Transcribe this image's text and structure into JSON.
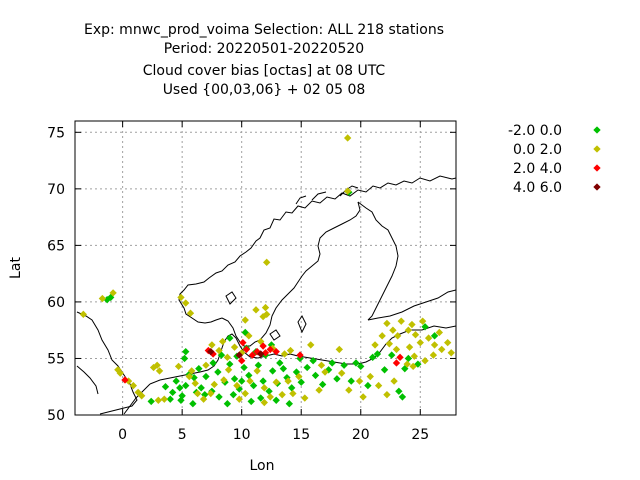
{
  "chart_data": {
    "type": "scatter",
    "title_lines": [
      "Exp: mnwc_prod_voima   Selection: ALL    218 stations",
      "Period: 20220501-20220520",
      "Cloud cover bias [octas] at  08 UTC",
      "Used {00,03,06} + 02 05 08"
    ],
    "xlabel": "Lon",
    "ylabel": "Lat",
    "xlim": [
      -4,
      28
    ],
    "ylim": [
      50,
      76
    ],
    "xticks": [
      0,
      5,
      10,
      15,
      20,
      25
    ],
    "yticks": [
      50,
      55,
      60,
      65,
      70,
      75
    ],
    "grid": true,
    "legend_placement": "top-right outside",
    "series": [
      {
        "name": "-2.0 0.0",
        "color": "#00c000",
        "points": [
          [
            -1.3,
            60.2
          ],
          [
            -1.0,
            60.4
          ],
          [
            19.0,
            69.7
          ],
          [
            2.4,
            51.2
          ],
          [
            4.2,
            52.0
          ],
          [
            4.8,
            52.4
          ],
          [
            5.3,
            52.6
          ],
          [
            5.0,
            51.7
          ],
          [
            4.5,
            53.0
          ],
          [
            5.6,
            53.6
          ],
          [
            5.2,
            55.0
          ],
          [
            6.0,
            53.3
          ],
          [
            6.6,
            52.4
          ],
          [
            7.0,
            53.4
          ],
          [
            7.5,
            52.1
          ],
          [
            8.0,
            53.8
          ],
          [
            8.6,
            52.9
          ],
          [
            9.0,
            54.5
          ],
          [
            9.4,
            53.2
          ],
          [
            9.8,
            52.3
          ],
          [
            10.2,
            54.2
          ],
          [
            10.6,
            53.5
          ],
          [
            11.0,
            52.6
          ],
          [
            11.4,
            54.4
          ],
          [
            11.8,
            53.0
          ],
          [
            12.3,
            52.1
          ],
          [
            12.6,
            53.9
          ],
          [
            13.0,
            52.8
          ],
          [
            13.5,
            54.1
          ],
          [
            13.8,
            53.3
          ],
          [
            14.2,
            52.4
          ],
          [
            14.6,
            53.8
          ],
          [
            15.0,
            52.9
          ],
          [
            15.5,
            54.2
          ],
          [
            16.2,
            53.5
          ],
          [
            16.8,
            52.7
          ],
          [
            17.3,
            54.0
          ],
          [
            18.0,
            53.2
          ],
          [
            18.6,
            54.4
          ],
          [
            19.2,
            53.0
          ],
          [
            20.0,
            54.3
          ],
          [
            20.6,
            52.6
          ],
          [
            21.0,
            55.1
          ],
          [
            21.4,
            55.4
          ],
          [
            22.0,
            54.0
          ],
          [
            23.2,
            52.1
          ],
          [
            23.5,
            51.6
          ],
          [
            24.0,
            55.0
          ],
          [
            24.8,
            54.5
          ],
          [
            25.4,
            57.8
          ],
          [
            26.2,
            57.0
          ],
          [
            22.6,
            55.3
          ],
          [
            23.7,
            54.1
          ],
          [
            8.1,
            51.6
          ],
          [
            8.8,
            51.0
          ],
          [
            9.3,
            51.8
          ],
          [
            10.8,
            51.2
          ],
          [
            11.6,
            51.5
          ],
          [
            12.9,
            51.3
          ],
          [
            14.0,
            51.0
          ],
          [
            10.0,
            53.0
          ],
          [
            7.6,
            54.6
          ],
          [
            6.4,
            54.1
          ],
          [
            3.6,
            52.5
          ],
          [
            4.0,
            51.4
          ],
          [
            5.9,
            51.0
          ],
          [
            6.9,
            51.8
          ],
          [
            9.6,
            55.2
          ],
          [
            11.2,
            55.6
          ],
          [
            12.0,
            55.3
          ],
          [
            14.9,
            55.0
          ],
          [
            13.2,
            54.6
          ],
          [
            16.0,
            54.8
          ],
          [
            17.6,
            54.6
          ],
          [
            19.6,
            54.6
          ],
          [
            8.3,
            55.3
          ],
          [
            10.4,
            55.9
          ],
          [
            12.5,
            56.2
          ],
          [
            9.0,
            56.8
          ],
          [
            10.3,
            57.3
          ],
          [
            5.3,
            55.6
          ],
          [
            4.9,
            51.3
          ],
          [
            6.2,
            52.0
          ]
        ]
      },
      {
        "name": "0.0 2.0",
        "color": "#c0c000",
        "points": [
          [
            -3.3,
            58.9
          ],
          [
            -1.7,
            60.3
          ],
          [
            -0.8,
            60.8
          ],
          [
            4.9,
            60.4
          ],
          [
            5.3,
            59.9
          ],
          [
            5.7,
            59.0
          ],
          [
            12.1,
            63.5
          ],
          [
            18.9,
            74.5
          ],
          [
            18.9,
            69.8
          ],
          [
            -0.4,
            54.0
          ],
          [
            -0.2,
            53.7
          ],
          [
            0.5,
            53.0
          ],
          [
            0.9,
            52.6
          ],
          [
            1.3,
            52.0
          ],
          [
            1.6,
            51.7
          ],
          [
            3.0,
            51.3
          ],
          [
            3.5,
            51.4
          ],
          [
            2.9,
            54.4
          ],
          [
            3.1,
            53.9
          ],
          [
            4.7,
            54.3
          ],
          [
            5.8,
            53.9
          ],
          [
            6.1,
            52.8
          ],
          [
            6.8,
            51.4
          ],
          [
            7.4,
            51.9
          ],
          [
            7.7,
            52.7
          ],
          [
            8.5,
            53.1
          ],
          [
            8.9,
            54.0
          ],
          [
            9.6,
            52.6
          ],
          [
            10.3,
            51.9
          ],
          [
            10.7,
            53.0
          ],
          [
            11.3,
            53.9
          ],
          [
            11.9,
            52.4
          ],
          [
            12.4,
            51.6
          ],
          [
            12.9,
            52.9
          ],
          [
            13.4,
            51.8
          ],
          [
            13.9,
            53.0
          ],
          [
            14.3,
            51.9
          ],
          [
            14.8,
            53.4
          ],
          [
            15.3,
            51.5
          ],
          [
            16.5,
            52.2
          ],
          [
            17.0,
            53.8
          ],
          [
            18.4,
            53.7
          ],
          [
            19.0,
            52.2
          ],
          [
            19.9,
            53.0
          ],
          [
            20.2,
            51.6
          ],
          [
            20.8,
            53.4
          ],
          [
            21.5,
            52.6
          ],
          [
            22.2,
            51.8
          ],
          [
            22.8,
            53.0
          ],
          [
            21.8,
            57.0
          ],
          [
            22.2,
            58.1
          ],
          [
            22.7,
            57.5
          ],
          [
            23.1,
            57.0
          ],
          [
            23.4,
            58.3
          ],
          [
            24.0,
            57.5
          ],
          [
            24.3,
            58.0
          ],
          [
            24.6,
            57.1
          ],
          [
            25.0,
            56.4
          ],
          [
            25.7,
            56.8
          ],
          [
            26.2,
            56.2
          ],
          [
            26.8,
            55.8
          ],
          [
            27.3,
            56.4
          ],
          [
            27.6,
            55.5
          ],
          [
            24.1,
            56.0
          ],
          [
            24.5,
            55.2
          ],
          [
            25.4,
            54.8
          ],
          [
            26.1,
            55.3
          ],
          [
            23.0,
            55.8
          ],
          [
            22.4,
            56.3
          ],
          [
            21.2,
            56.2
          ],
          [
            25.2,
            58.3
          ],
          [
            26.6,
            57.3
          ],
          [
            23.9,
            54.5
          ],
          [
            24.4,
            54.3
          ],
          [
            10.0,
            55.5
          ],
          [
            11.6,
            56.5
          ],
          [
            12.6,
            55.9
          ],
          [
            9.4,
            56.0
          ],
          [
            8.4,
            56.5
          ],
          [
            10.6,
            57.0
          ],
          [
            7.5,
            56.2
          ],
          [
            14.1,
            55.7
          ],
          [
            15.8,
            56.2
          ],
          [
            16.7,
            54.4
          ],
          [
            18.2,
            55.8
          ],
          [
            13.6,
            55.4
          ],
          [
            7.0,
            54.4
          ],
          [
            5.6,
            53.4
          ],
          [
            6.3,
            51.9
          ],
          [
            9.8,
            51.4
          ],
          [
            11.9,
            51.1
          ],
          [
            8.1,
            55.7
          ],
          [
            2.6,
            54.2
          ],
          [
            8.8,
            55.1
          ],
          [
            12.0,
            59.5
          ],
          [
            12.1,
            58.9
          ],
          [
            11.2,
            59.3
          ],
          [
            11.8,
            58.7
          ],
          [
            10.3,
            58.4
          ]
        ]
      },
      {
        "name": "2.0 4.0",
        "color": "#ff0000",
        "points": [
          [
            0.2,
            53.1
          ],
          [
            7.2,
            55.7
          ],
          [
            7.6,
            55.4
          ],
          [
            10.1,
            56.4
          ],
          [
            10.4,
            55.8
          ],
          [
            10.9,
            55.3
          ],
          [
            11.3,
            55.6
          ],
          [
            11.8,
            56.1
          ],
          [
            12.0,
            55.5
          ],
          [
            12.4,
            55.8
          ],
          [
            12.9,
            55.6
          ],
          [
            14.9,
            55.3
          ],
          [
            23.3,
            55.1
          ],
          [
            23.0,
            54.6
          ],
          [
            10.0,
            54.8
          ]
        ]
      },
      {
        "name": "4.0 6.0",
        "color": "#800000",
        "points": [
          [
            7.4,
            55.6
          ],
          [
            9.8,
            55.3
          ],
          [
            11.6,
            55.4
          ]
        ]
      }
    ]
  }
}
